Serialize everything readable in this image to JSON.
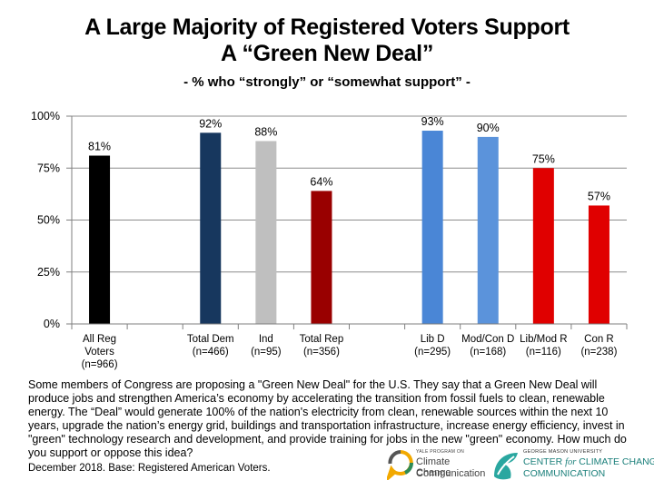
{
  "title_line1": "A Large Majority of Registered Voters Support",
  "title_line2": "A “Green New Deal”",
  "subtitle": "- % who “strongly” or “somewhat support” -",
  "chart_data": {
    "type": "bar",
    "categories": [
      [
        "All Reg",
        "Voters",
        "(n=966)"
      ],
      [],
      [
        "Total Dem",
        "(n=466)"
      ],
      [
        "Ind",
        "(n=95)"
      ],
      [
        "Total Rep",
        "(n=356)"
      ],
      [],
      [
        "Lib D",
        "(n=295)"
      ],
      [
        "Mod/Con D",
        "(n=168)"
      ],
      [
        "Lib/Mod R",
        "(n=116)"
      ],
      [
        "Con R",
        "(n=238)"
      ]
    ],
    "values": [
      81,
      null,
      92,
      88,
      64,
      null,
      93,
      90,
      75,
      57
    ],
    "value_labels": [
      "81%",
      "",
      "92%",
      "88%",
      "64%",
      "",
      "93%",
      "90%",
      "75%",
      "57%"
    ],
    "colors": [
      "#000000",
      null,
      "#17375e",
      "#bfbfbf",
      "#990000",
      null,
      "#4a86d6",
      "#5b93db",
      "#e00000",
      "#e00000"
    ],
    "ylim": [
      0,
      100
    ],
    "yticks": [
      0,
      25,
      50,
      75,
      100
    ],
    "ytick_labels": [
      "0%",
      "25%",
      "50%",
      "75%",
      "100%"
    ],
    "xlabel": "",
    "ylabel": "",
    "grid": true
  },
  "question_text": "Some members of Congress are proposing a \"Green New Deal\" for the U.S. They say that a Green New Deal will produce jobs and strengthen America’s economy by accelerating the transition from fossil fuels to clean, renewable energy. The “Deal” would generate 100% of the nation's electricity from clean, renewable sources within the next 10 years, upgrade the nation’s energy grid, buildings and transportation infrastructure, increase energy efficiency, invest in \"green\" technology research and development, and provide training for jobs in the new \"green\" economy. How much do you support or oppose this idea?",
  "footnote": "December 2018. Base: Registered American Voters.",
  "logos": {
    "yale_small": "YALE PROGRAM ON",
    "yale_line1": "Climate Change",
    "yale_line2": "Communication",
    "gmu_small": "GEORGE MASON UNIVERSITY",
    "gmu_line1_a": "CENTER ",
    "gmu_line1_b": "for",
    "gmu_line1_c": " CLIMATE CHANGE",
    "gmu_line2": "COMMUNICATION"
  }
}
